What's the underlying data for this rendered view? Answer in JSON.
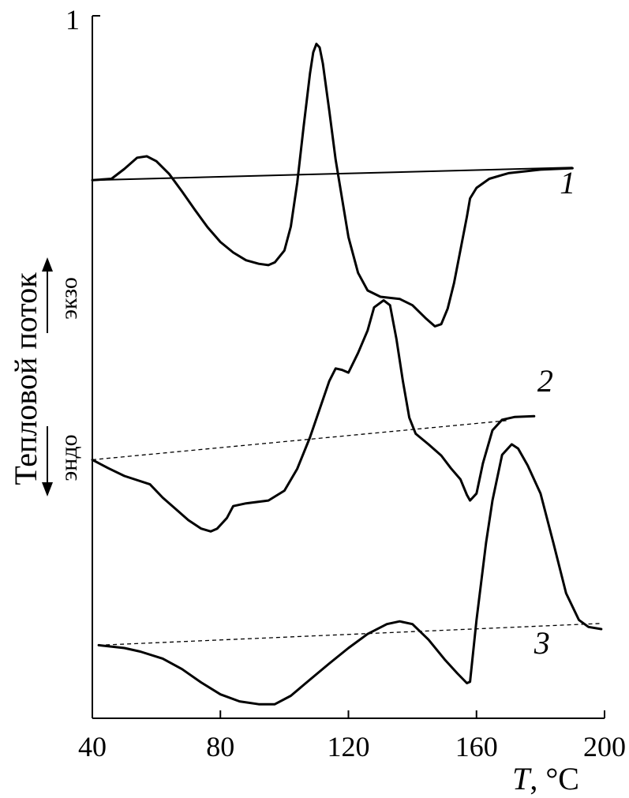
{
  "chart_data": {
    "type": "line",
    "xlabel": {
      "italic": "T",
      "rest": ", °C"
    },
    "ylabel": "Тепловой поток",
    "direction_labels": {
      "exo": "экзо",
      "endo": "эндо"
    },
    "xlim": [
      40,
      200
    ],
    "ylim": [
      0,
      1
    ],
    "x_ticks": [
      40,
      80,
      120,
      160,
      200
    ],
    "y_ticks": [
      1
    ],
    "grid": false,
    "series": [
      {
        "name": "1",
        "style": "solid",
        "points": [
          [
            40,
            0.766
          ],
          [
            46,
            0.768
          ],
          [
            50,
            0.782
          ],
          [
            54,
            0.798
          ],
          [
            57,
            0.8
          ],
          [
            60,
            0.793
          ],
          [
            64,
            0.775
          ],
          [
            68,
            0.75
          ],
          [
            72,
            0.724
          ],
          [
            76,
            0.699
          ],
          [
            80,
            0.678
          ],
          [
            84,
            0.663
          ],
          [
            88,
            0.652
          ],
          [
            92,
            0.647
          ],
          [
            95,
            0.645
          ],
          [
            97,
            0.649
          ],
          [
            100,
            0.666
          ],
          [
            102,
            0.7
          ],
          [
            104,
            0.762
          ],
          [
            106,
            0.842
          ],
          [
            108,
            0.918
          ],
          [
            109,
            0.948
          ],
          [
            110,
            0.96
          ],
          [
            111,
            0.955
          ],
          [
            112,
            0.932
          ],
          [
            114,
            0.865
          ],
          [
            116,
            0.795
          ],
          [
            118,
            0.74
          ],
          [
            120,
            0.685
          ],
          [
            123,
            0.634
          ],
          [
            126,
            0.609
          ],
          [
            130,
            0.6
          ],
          [
            136,
            0.597
          ],
          [
            140,
            0.588
          ],
          [
            144,
            0.57
          ],
          [
            147,
            0.558
          ],
          [
            149,
            0.561
          ],
          [
            151,
            0.583
          ],
          [
            153,
            0.62
          ],
          [
            155,
            0.667
          ],
          [
            157,
            0.714
          ],
          [
            158,
            0.74
          ],
          [
            160,
            0.755
          ],
          [
            164,
            0.768
          ],
          [
            170,
            0.776
          ],
          [
            180,
            0.781
          ],
          [
            190,
            0.783
          ]
        ],
        "baseline": [
          [
            40,
            0.766
          ],
          [
            190,
            0.784
          ]
        ],
        "baseline_style": "solid"
      },
      {
        "name": "2",
        "style": "solid",
        "points": [
          [
            40,
            0.368
          ],
          [
            45,
            0.356
          ],
          [
            50,
            0.345
          ],
          [
            58,
            0.333
          ],
          [
            62,
            0.314
          ],
          [
            66,
            0.298
          ],
          [
            70,
            0.282
          ],
          [
            74,
            0.27
          ],
          [
            77,
            0.266
          ],
          [
            79,
            0.27
          ],
          [
            82,
            0.285
          ],
          [
            84,
            0.302
          ],
          [
            88,
            0.306
          ],
          [
            95,
            0.31
          ],
          [
            100,
            0.324
          ],
          [
            104,
            0.355
          ],
          [
            108,
            0.4
          ],
          [
            111,
            0.44
          ],
          [
            114,
            0.48
          ],
          [
            116,
            0.498
          ],
          [
            118,
            0.496
          ],
          [
            120,
            0.492
          ],
          [
            123,
            0.52
          ],
          [
            126,
            0.552
          ],
          [
            128,
            0.585
          ],
          [
            131,
            0.595
          ],
          [
            133,
            0.588
          ],
          [
            135,
            0.54
          ],
          [
            137,
            0.48
          ],
          [
            139,
            0.428
          ],
          [
            141,
            0.405
          ],
          [
            145,
            0.39
          ],
          [
            149,
            0.374
          ],
          [
            152,
            0.356
          ],
          [
            155,
            0.34
          ],
          [
            157,
            0.318
          ],
          [
            158,
            0.31
          ],
          [
            160,
            0.32
          ],
          [
            162,
            0.363
          ],
          [
            165,
            0.41
          ],
          [
            168,
            0.425
          ],
          [
            172,
            0.429
          ],
          [
            178,
            0.43
          ]
        ],
        "baseline": [
          [
            40,
            0.368
          ],
          [
            170,
            0.424
          ]
        ],
        "baseline_style": "dashed"
      },
      {
        "name": "3",
        "style": "solid",
        "points": [
          [
            42,
            0.104
          ],
          [
            50,
            0.1
          ],
          [
            55,
            0.095
          ],
          [
            62,
            0.085
          ],
          [
            68,
            0.07
          ],
          [
            74,
            0.051
          ],
          [
            80,
            0.034
          ],
          [
            86,
            0.024
          ],
          [
            92,
            0.02
          ],
          [
            97,
            0.02
          ],
          [
            102,
            0.032
          ],
          [
            108,
            0.055
          ],
          [
            114,
            0.078
          ],
          [
            120,
            0.1
          ],
          [
            126,
            0.12
          ],
          [
            132,
            0.134
          ],
          [
            136,
            0.138
          ],
          [
            140,
            0.134
          ],
          [
            145,
            0.112
          ],
          [
            150,
            0.084
          ],
          [
            154,
            0.064
          ],
          [
            157,
            0.05
          ],
          [
            158,
            0.052
          ],
          [
            160,
            0.14
          ],
          [
            163,
            0.25
          ],
          [
            165,
            0.31
          ],
          [
            168,
            0.375
          ],
          [
            171,
            0.39
          ],
          [
            173,
            0.384
          ],
          [
            176,
            0.36
          ],
          [
            180,
            0.32
          ],
          [
            184,
            0.25
          ],
          [
            188,
            0.178
          ],
          [
            192,
            0.14
          ],
          [
            195,
            0.13
          ],
          [
            199,
            0.127
          ]
        ],
        "baseline": [
          [
            42,
            0.104
          ],
          [
            199,
            0.135
          ]
        ],
        "baseline_style": "dashed"
      }
    ],
    "series_label_anchors": [
      [
        186,
        0.747
      ],
      [
        179,
        0.465
      ],
      [
        178,
        0.092
      ]
    ]
  }
}
